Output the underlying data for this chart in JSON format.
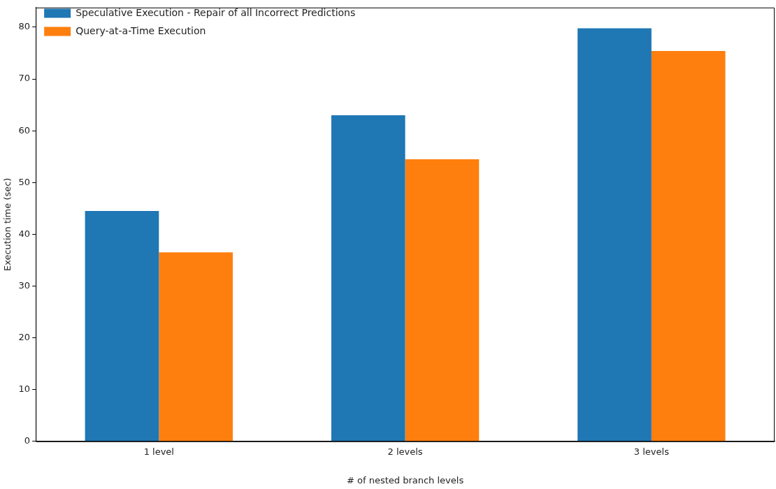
{
  "chart_data": {
    "type": "bar",
    "xlabel": "# of nested branch levels",
    "ylabel": "Execution time (sec)",
    "categories": [
      "1 level",
      "2 levels",
      "3 levels"
    ],
    "series": [
      {
        "name": "Speculative Execution - Repair of all Incorrect Predictions",
        "color": "#1f77b4",
        "values": [
          44.5,
          63,
          79.8
        ]
      },
      {
        "name": "Query-at-a-Time Execution",
        "color": "#ff7f0e",
        "values": [
          36.5,
          54.5,
          75.4
        ]
      }
    ],
    "ylim": [
      0,
      83.8
    ],
    "yticks": [
      0,
      10,
      20,
      30,
      40,
      50,
      60,
      70,
      80
    ],
    "grid": false,
    "legend": "top left"
  }
}
